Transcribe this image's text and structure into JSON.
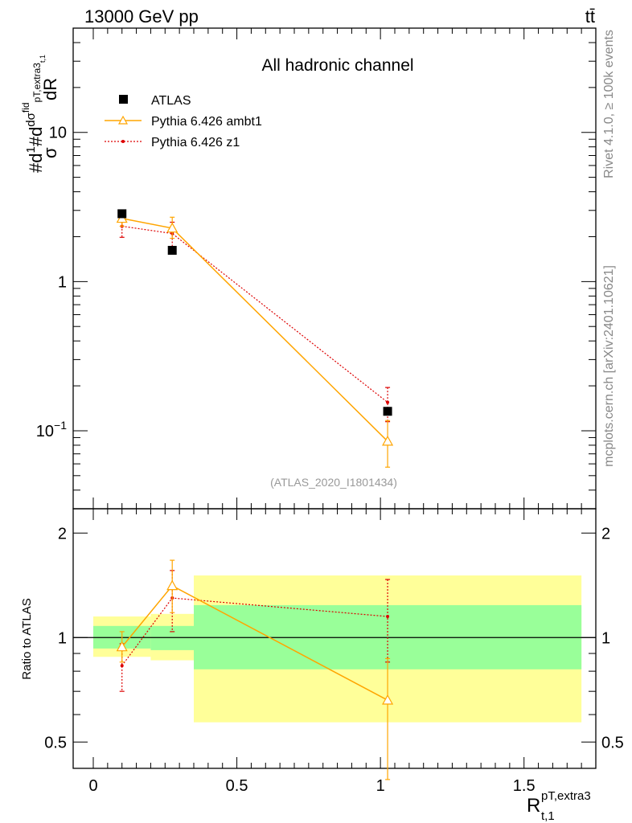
{
  "header": {
    "energy_label": "13000 GeV pp",
    "process_label": "tt̄"
  },
  "side_text": {
    "rivet": "Rivet 4.1.0, ≥ 100k events",
    "site": "mcplots.cern.ch [arXiv:2401.10621]"
  },
  "chart_data": [
    {
      "type": "line",
      "panel": "main",
      "title": "All hadronic channel",
      "watermark": "(ATLAS_2020_I1801434)",
      "yscale": "log",
      "ylim": [
        0.03,
        50
      ],
      "xlim": [
        -0.07,
        1.75
      ],
      "ylabel": "#d1/σ#dd σ^fid p T,extra3 t,1 / dR",
      "yticks": [
        {
          "value": 0.1,
          "label": "10^-1"
        },
        {
          "value": 1,
          "label": "1"
        },
        {
          "value": 10,
          "label": "10"
        }
      ],
      "legend": [
        {
          "name": "ATLAS",
          "style": "data-square"
        },
        {
          "name": "Pythia 6.426 ambt1",
          "style": "orange-line-triangle"
        },
        {
          "name": "Pythia 6.426 z1",
          "style": "red-dotted-dot"
        }
      ],
      "series": [
        {
          "name": "ATLAS",
          "color": "#000000",
          "points": [
            {
              "x": 0.1,
              "y": 2.85,
              "xlo": 0.0,
              "xhi": 0.2
            },
            {
              "x": 0.275,
              "y": 1.62,
              "xlo": 0.2,
              "xhi": 0.35
            },
            {
              "x": 1.025,
              "y": 0.135,
              "xlo": 0.35,
              "xhi": 1.7
            }
          ]
        },
        {
          "name": "Pythia 6.426 ambt1",
          "color": "#FFA500",
          "points": [
            {
              "x": 0.1,
              "y": 2.65,
              "elo": 2.35,
              "ehi": 2.95
            },
            {
              "x": 0.275,
              "y": 2.28,
              "elo": 1.95,
              "ehi": 2.7
            },
            {
              "x": 1.025,
              "y": 0.085,
              "elo": 0.057,
              "ehi": 0.117
            }
          ]
        },
        {
          "name": "Pythia 6.426 z1",
          "color": "#DD0000",
          "points": [
            {
              "x": 0.1,
              "y": 2.35,
              "elo": 1.98,
              "ehi": 2.75
            },
            {
              "x": 0.275,
              "y": 2.1,
              "elo": 1.7,
              "ehi": 2.5
            },
            {
              "x": 1.025,
              "y": 0.155,
              "elo": 0.115,
              "ehi": 0.195
            }
          ]
        }
      ]
    },
    {
      "type": "line",
      "panel": "ratio",
      "ylabel": "Ratio to ATLAS",
      "xlabel_main": "R",
      "xlabel_sup": "pT,extra3",
      "xlabel_sub": "t,1",
      "yscale": "log",
      "ylim": [
        0.42,
        2.35
      ],
      "yticks": [
        {
          "value": 0.5,
          "label": "0.5"
        },
        {
          "value": 1,
          "label": "1"
        },
        {
          "value": 2,
          "label": "2"
        }
      ],
      "xticks": [
        {
          "value": 0,
          "label": "0"
        },
        {
          "value": 0.5,
          "label": "0.5"
        },
        {
          "value": 1,
          "label": "1"
        },
        {
          "value": 1.5,
          "label": "1.5"
        }
      ],
      "uncertainty_bands": [
        {
          "xlo": 0.0,
          "xhi": 0.2,
          "inner": [
            0.93,
            1.08
          ],
          "outer": [
            0.88,
            1.15
          ]
        },
        {
          "xlo": 0.2,
          "xhi": 0.35,
          "inner": [
            0.92,
            1.08
          ],
          "outer": [
            0.86,
            1.17
          ]
        },
        {
          "xlo": 0.35,
          "xhi": 1.7,
          "inner": [
            0.81,
            1.24
          ],
          "outer": [
            0.57,
            1.51
          ]
        }
      ],
      "series": [
        {
          "name": "Pythia 6.426 ambt1",
          "color": "#FFA500",
          "points": [
            {
              "x": 0.1,
              "y": 0.94,
              "elo": 0.85,
              "ehi": 1.04
            },
            {
              "x": 0.275,
              "y": 1.41,
              "elo": 1.18,
              "ehi": 1.67
            },
            {
              "x": 1.025,
              "y": 0.66,
              "elo": 0.39,
              "ehi": 0.87
            }
          ]
        },
        {
          "name": "Pythia 6.426 z1",
          "color": "#DD0000",
          "points": [
            {
              "x": 0.1,
              "y": 0.83,
              "elo": 0.7,
              "ehi": 0.96
            },
            {
              "x": 0.275,
              "y": 1.3,
              "elo": 1.04,
              "ehi": 1.56
            },
            {
              "x": 1.025,
              "y": 1.15,
              "elo": 0.85,
              "ehi": 1.47
            }
          ]
        }
      ]
    }
  ]
}
